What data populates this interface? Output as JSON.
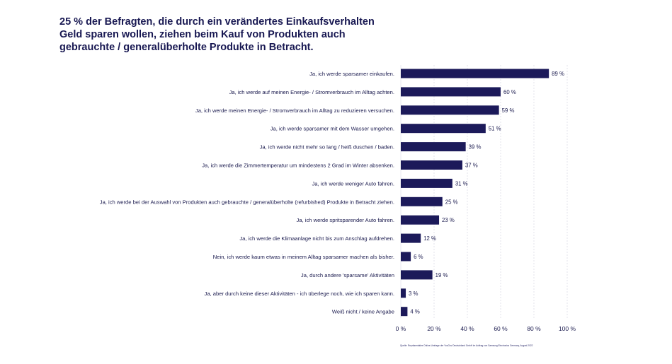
{
  "title": "25 % der Befragten, die durch ein verändertes Einkaufsverhalten Geld sparen wollen, ziehen beim Kauf von Produkten auch gebrauchte / generalüberholte Produkte in Betracht.",
  "source": "Quelle: Repräsentative Online-Umfrage der YouGov Deutschland GmbH im Auftrag von Samsung Electronics Germany, August 2022",
  "colors": {
    "bar": "#1c1a5a",
    "text": "#1a1a4e",
    "grid": "#dcdce6"
  },
  "chart_data": {
    "type": "bar",
    "orientation": "horizontal",
    "categories": [
      "Ja, ich werde sparsamer einkaufen.",
      "Ja, ich werde auf meinen Energie- / Stromverbrauch im Alltag achten.",
      "Ja, ich werde meinen Energie- / Stromverbrauch im Alltag zu reduzieren versuchen.",
      "Ja, ich werde sparsamer mit dem Wasser umgehen.",
      "Ja, ich werde nicht mehr so lang / heiß duschen / baden.",
      "Ja, ich werde die Zimmertemperatur um mindestens 2 Grad im Winter absenken.",
      "Ja, ich werde weniger Auto fahren.",
      "Ja, ich werde bei der Auswahl von Produkten auch gebrauchte / generalüberholte (refurbished) Produkte in Betracht ziehen.",
      "Ja, ich werde spritsparender Auto fahren.",
      "Ja, ich werde die Klimaanlage nicht bis zum Anschlag aufdrehen.",
      "Nein, ich werde kaum etwas in meinem Alltag sparsamer machen als bisher.",
      "Ja, durch andere 'sparsame' Aktivitäten",
      "Ja, aber durch keine dieser Aktivitäten - ich überlege noch, wie ich sparen kann.",
      "Weiß nicht / keine Angabe"
    ],
    "values": [
      89,
      60,
      59,
      51,
      39,
      37,
      31,
      25,
      23,
      12,
      6,
      19,
      3,
      4
    ],
    "value_labels": [
      "89 %",
      "60 %",
      "59 %",
      "51 %",
      "39 %",
      "37 %",
      "31 %",
      "25 %",
      "23 %",
      "12 %",
      "6 %",
      "19 %",
      "3 %",
      "4 %"
    ],
    "xlim": [
      0,
      100
    ],
    "xticks": [
      0,
      20,
      40,
      60,
      80,
      100
    ],
    "xtick_labels": [
      "0 %",
      "20 %",
      "40 %",
      "60 %",
      "80 %",
      "100 %"
    ],
    "grid": true,
    "xlabel": "",
    "ylabel": ""
  }
}
